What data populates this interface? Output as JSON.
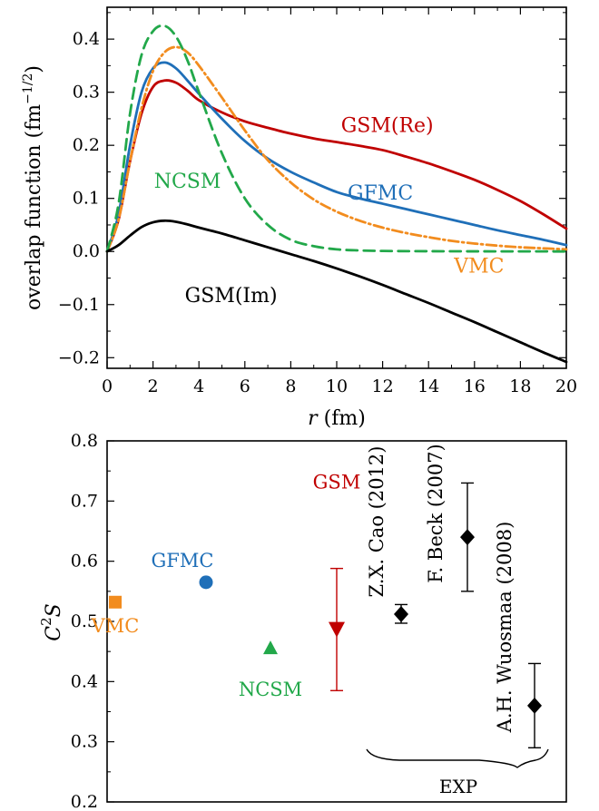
{
  "chart_data": [
    {
      "type": "line",
      "ylabel": "overlap function (fm",
      "ylabel_sup": "−1/2",
      "ylabel_close": ")",
      "xlabel_var": "r",
      "xlabel_unit": " (fm)",
      "xlim": [
        0,
        20
      ],
      "ylim": [
        -0.22,
        0.46
      ],
      "x_ticks": [
        "0",
        "2",
        "4",
        "6",
        "8",
        "10",
        "12",
        "14",
        "16",
        "18",
        "20"
      ],
      "y_ticks": [
        {
          "v": -0.2,
          "label": "−0.2"
        },
        {
          "v": -0.1,
          "label": "−0.1"
        },
        {
          "v": 0.0,
          "label": "0.0"
        },
        {
          "v": 0.1,
          "label": "0.1"
        },
        {
          "v": 0.2,
          "label": "0.2"
        },
        {
          "v": 0.3,
          "label": "0.3"
        },
        {
          "v": 0.4,
          "label": "0.4"
        }
      ],
      "grid": false,
      "series": [
        {
          "name": "GSM(Re)",
          "color": "#c00000",
          "style": "solid",
          "x": [
            0,
            0.5,
            1,
            1.5,
            2,
            2.5,
            3,
            3.5,
            4,
            5,
            6,
            7,
            8,
            9,
            10,
            11,
            12,
            13,
            14,
            15,
            16,
            17,
            18,
            19,
            20
          ],
          "y": [
            0,
            0.06,
            0.17,
            0.26,
            0.31,
            0.322,
            0.318,
            0.303,
            0.285,
            0.262,
            0.245,
            0.233,
            0.222,
            0.213,
            0.206,
            0.199,
            0.191,
            0.179,
            0.166,
            0.151,
            0.135,
            0.116,
            0.095,
            0.07,
            0.043
          ]
        },
        {
          "name": "GFMC",
          "color": "#1f6fb8",
          "style": "solid",
          "x": [
            0,
            0.5,
            1,
            1.5,
            2,
            2.5,
            3,
            3.5,
            4,
            5,
            6,
            7,
            8,
            9,
            10,
            11,
            12,
            13,
            14,
            15,
            16,
            17,
            18,
            19,
            20
          ],
          "y": [
            0,
            0.07,
            0.2,
            0.3,
            0.345,
            0.356,
            0.345,
            0.322,
            0.297,
            0.25,
            0.208,
            0.175,
            0.15,
            0.13,
            0.112,
            0.1,
            0.09,
            0.08,
            0.07,
            0.06,
            0.05,
            0.04,
            0.031,
            0.022,
            0.012
          ]
        },
        {
          "name": "VMC",
          "color": "#f28c1e",
          "style": "dashdot",
          "x": [
            0,
            0.5,
            1,
            1.5,
            2,
            2.5,
            3,
            3.5,
            4,
            5,
            6,
            7,
            8,
            9,
            10,
            11,
            12,
            13,
            14,
            15,
            16,
            17,
            18,
            19,
            20
          ],
          "y": [
            0,
            0.06,
            0.17,
            0.27,
            0.34,
            0.375,
            0.385,
            0.375,
            0.35,
            0.29,
            0.228,
            0.172,
            0.13,
            0.098,
            0.075,
            0.058,
            0.045,
            0.035,
            0.027,
            0.02,
            0.015,
            0.011,
            0.008,
            0.006,
            0.004
          ]
        },
        {
          "name": "NCSM",
          "color": "#22a84a",
          "style": "dashed",
          "x": [
            0,
            0.5,
            1,
            1.5,
            2,
            2.5,
            3,
            3.5,
            4,
            5,
            6,
            7,
            8,
            9,
            10,
            11,
            12,
            14,
            16,
            18,
            20
          ],
          "y": [
            0,
            0.09,
            0.26,
            0.37,
            0.415,
            0.425,
            0.405,
            0.36,
            0.3,
            0.185,
            0.1,
            0.05,
            0.022,
            0.01,
            0.004,
            0.002,
            0.001,
            0.0005,
            0.0003,
            0.0002,
            0.0001
          ]
        },
        {
          "name": "GSM(Im)",
          "color": "#000000",
          "style": "solid",
          "x": [
            0,
            0.5,
            1,
            1.5,
            2,
            2.5,
            3,
            3.5,
            4,
            5,
            6,
            7,
            8,
            9,
            10,
            11,
            12,
            13,
            14,
            15,
            16,
            17,
            18,
            19,
            20
          ],
          "y": [
            0,
            0.012,
            0.03,
            0.046,
            0.055,
            0.058,
            0.056,
            0.051,
            0.045,
            0.034,
            0.021,
            0.008,
            -0.005,
            -0.018,
            -0.032,
            -0.047,
            -0.063,
            -0.08,
            -0.097,
            -0.115,
            -0.133,
            -0.152,
            -0.171,
            -0.19,
            -0.208
          ]
        }
      ],
      "labels": [
        {
          "text": "GSM(Re)",
          "color": "#c00000",
          "x": 12.2,
          "y": 0.225
        },
        {
          "text": "GFMC",
          "color": "#1f6fb8",
          "x": 11.9,
          "y": 0.098
        },
        {
          "text": "NCSM",
          "color": "#22a84a",
          "x": 3.5,
          "y": 0.12
        },
        {
          "text": "VMC",
          "color": "#f28c1e",
          "x": 16.2,
          "y": -0.04
        },
        {
          "text": "GSM(Im)",
          "color": "#000000",
          "x": 5.4,
          "y": -0.095
        }
      ]
    },
    {
      "type": "scatter",
      "ylabel": "C",
      "ylabel_sup": "2",
      "ylabel_tail": "S",
      "ylim": [
        0.2,
        0.8
      ],
      "y_ticks": [
        "0.2",
        "0.3",
        "0.4",
        "0.5",
        "0.6",
        "0.7",
        "0.8"
      ],
      "points": [
        {
          "name": "VMC",
          "color": "#f28c1e",
          "marker": "square",
          "x": 1.0,
          "y": 0.532
        },
        {
          "name": "GFMC",
          "color": "#1f6fb8",
          "marker": "circle",
          "x": 2.0,
          "y": 0.565
        },
        {
          "name": "NCSM",
          "color": "#22a84a",
          "marker": "triangle-up",
          "x": 3.0,
          "y": 0.456
        },
        {
          "name": "GSM",
          "color": "#c00000",
          "marker": "triangle-down",
          "x": 4.0,
          "y": 0.487,
          "err": [
            0.385,
            0.588
          ]
        },
        {
          "name": "Z.X. Cao (2012)",
          "color": "#000000",
          "marker": "diamond",
          "x": 5.0,
          "y": 0.512,
          "err": [
            0.497,
            0.528
          ]
        },
        {
          "name": "F. Beck (2007)",
          "color": "#000000",
          "marker": "diamond",
          "x": 6.0,
          "y": 0.64,
          "err": [
            0.55,
            0.73
          ]
        },
        {
          "name": "A.H. Wuosmaa (2008)",
          "color": "#000000",
          "marker": "diamond",
          "x": 7.0,
          "y": 0.36,
          "err": [
            0.29,
            0.43
          ]
        }
      ],
      "group_label": "EXP"
    }
  ]
}
